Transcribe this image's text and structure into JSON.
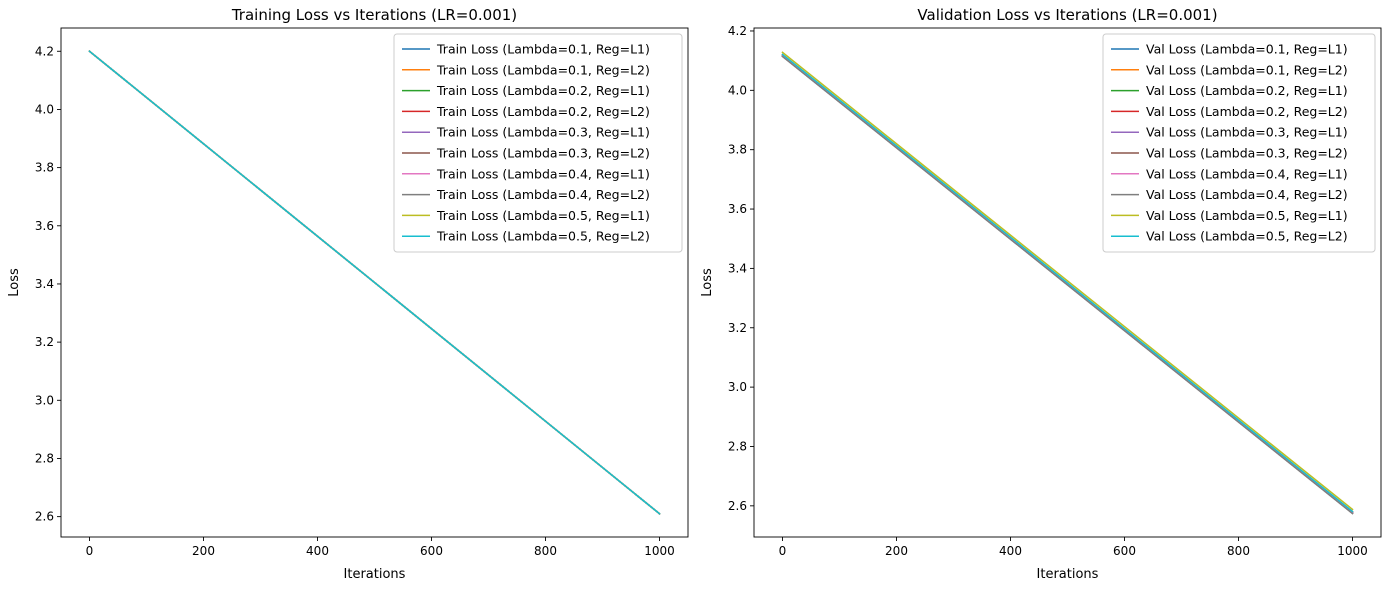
{
  "chart_data": [
    {
      "type": "line",
      "title": "Training Loss vs Iterations (LR=0.001)",
      "xlabel": "Iterations",
      "ylabel": "Loss",
      "xlim": [
        -50,
        1050
      ],
      "ylim": [
        2.53,
        4.28
      ],
      "xticks": [
        0,
        200,
        400,
        600,
        800,
        1000
      ],
      "yticks": [
        2.6,
        2.8,
        3.0,
        3.2,
        3.4,
        3.6,
        3.8,
        4.0,
        4.2
      ],
      "tick_labels_x": [
        "0",
        "200",
        "400",
        "600",
        "800",
        "1000"
      ],
      "tick_labels_y": [
        "2.6",
        "2.8",
        "3.0",
        "3.2",
        "3.4",
        "3.6",
        "3.8",
        "4.0",
        "4.2"
      ],
      "grid": false,
      "legend_position": "upper right",
      "x": [
        0,
        1000
      ],
      "series": [
        {
          "name": "Train Loss (Lambda=0.1, Reg=L1)",
          "color": "#1f77b4",
          "values": [
            4.2,
            2.61
          ]
        },
        {
          "name": "Train Loss (Lambda=0.1, Reg=L2)",
          "color": "#ff7f0e",
          "values": [
            4.2,
            2.61
          ]
        },
        {
          "name": "Train Loss (Lambda=0.2, Reg=L1)",
          "color": "#2ca02c",
          "values": [
            4.2,
            2.61
          ]
        },
        {
          "name": "Train Loss (Lambda=0.2, Reg=L2)",
          "color": "#d62728",
          "values": [
            4.2,
            2.61
          ]
        },
        {
          "name": "Train Loss (Lambda=0.3, Reg=L1)",
          "color": "#9467bd",
          "values": [
            4.2,
            2.61
          ]
        },
        {
          "name": "Train Loss (Lambda=0.3, Reg=L2)",
          "color": "#8c564b",
          "values": [
            4.2,
            2.61
          ]
        },
        {
          "name": "Train Loss (Lambda=0.4, Reg=L1)",
          "color": "#e377c2",
          "values": [
            4.2,
            2.61
          ]
        },
        {
          "name": "Train Loss (Lambda=0.4, Reg=L2)",
          "color": "#7f7f7f",
          "values": [
            4.2,
            2.61
          ]
        },
        {
          "name": "Train Loss (Lambda=0.5, Reg=L1)",
          "color": "#bcbd22",
          "values": [
            4.2,
            2.61
          ]
        },
        {
          "name": "Train Loss (Lambda=0.5, Reg=L2)",
          "color": "#17becf",
          "values": [
            4.2,
            2.61
          ]
        }
      ]
    },
    {
      "type": "line",
      "title": "Validation Loss vs Iterations (LR=0.001)",
      "xlabel": "Iterations",
      "ylabel": "Loss",
      "xlim": [
        -50,
        1050
      ],
      "ylim": [
        2.495,
        4.21
      ],
      "xticks": [
        0,
        200,
        400,
        600,
        800,
        1000
      ],
      "yticks": [
        2.6,
        2.8,
        3.0,
        3.2,
        3.4,
        3.6,
        3.8,
        4.0,
        4.2
      ],
      "tick_labels_x": [
        "0",
        "200",
        "400",
        "600",
        "800",
        "1000"
      ],
      "tick_labels_y": [
        "2.6",
        "2.8",
        "3.0",
        "3.2",
        "3.4",
        "3.6",
        "3.8",
        "4.0",
        "4.2"
      ],
      "grid": false,
      "legend_position": "upper right",
      "x": [
        0,
        1000
      ],
      "series": [
        {
          "name": "Val Loss (Lambda=0.1, Reg=L1)",
          "color": "#1f77b4",
          "values": [
            4.115,
            2.575
          ]
        },
        {
          "name": "Val Loss (Lambda=0.1, Reg=L2)",
          "color": "#ff7f0e",
          "values": [
            4.12,
            2.58
          ]
        },
        {
          "name": "Val Loss (Lambda=0.2, Reg=L1)",
          "color": "#2ca02c",
          "values": [
            4.118,
            2.578
          ]
        },
        {
          "name": "Val Loss (Lambda=0.2, Reg=L2)",
          "color": "#d62728",
          "values": [
            4.116,
            2.576
          ]
        },
        {
          "name": "Val Loss (Lambda=0.3, Reg=L1)",
          "color": "#9467bd",
          "values": [
            4.117,
            2.577
          ]
        },
        {
          "name": "Val Loss (Lambda=0.3, Reg=L2)",
          "color": "#8c564b",
          "values": [
            4.115,
            2.575
          ]
        },
        {
          "name": "Val Loss (Lambda=0.4, Reg=L1)",
          "color": "#e377c2",
          "values": [
            4.119,
            2.579
          ]
        },
        {
          "name": "Val Loss (Lambda=0.4, Reg=L2)",
          "color": "#7f7f7f",
          "values": [
            4.114,
            2.574
          ]
        },
        {
          "name": "Val Loss (Lambda=0.5, Reg=L1)",
          "color": "#bcbd22",
          "values": [
            4.128,
            2.588
          ]
        },
        {
          "name": "Val Loss (Lambda=0.5, Reg=L2)",
          "color": "#17becf",
          "values": [
            4.121,
            2.581
          ]
        }
      ]
    }
  ]
}
